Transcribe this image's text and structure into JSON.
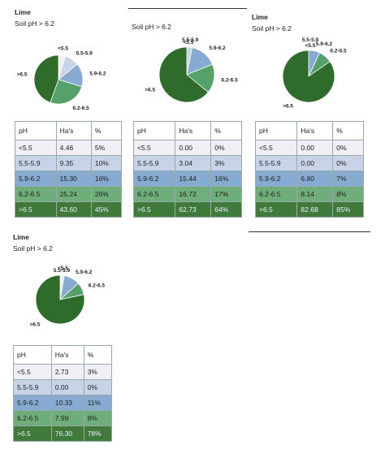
{
  "colors": [
    "#f1eef6",
    "#c9d3e8",
    "#87abd0",
    "#56a16a",
    "#2f6b2a"
  ],
  "chart_data": [
    {
      "type": "pie",
      "title": "Lime",
      "subtitle": "Soil pH > 6.2",
      "table_headers": [
        "pH",
        "Ha's",
        "%"
      ],
      "rows": [
        {
          "label": "<5.5",
          "ha": "4.46",
          "pct": "5%"
        },
        {
          "label": "5.5-5.9",
          "ha": "9.35",
          "pct": "10%"
        },
        {
          "label": "5.9-6.2",
          "ha": "15.30",
          "pct": "16%"
        },
        {
          "label": "6.2-6.5",
          "ha": "25.24",
          "pct": "26%"
        },
        {
          "label": ">6.5",
          "ha": "43.60",
          "pct": "45%"
        }
      ],
      "values": [
        4.46,
        9.35,
        15.3,
        25.24,
        43.6
      ]
    },
    {
      "type": "pie",
      "title": "",
      "subtitle": "Soil pH > 6.2",
      "table_headers": [
        "pH",
        "Ha's",
        "%"
      ],
      "rows": [
        {
          "label": "<5.5",
          "ha": "0.00",
          "pct": "0%"
        },
        {
          "label": "5.5-5.9",
          "ha": "3.04",
          "pct": "3%"
        },
        {
          "label": "5.9-6.2",
          "ha": "15.44",
          "pct": "16%"
        },
        {
          "label": "6.2-6.5",
          "ha": "16.72",
          "pct": "17%"
        },
        {
          "label": ">6.5",
          "ha": "62.73",
          "pct": "64%"
        }
      ],
      "values": [
        0.0,
        3.04,
        15.44,
        16.72,
        62.73
      ]
    },
    {
      "type": "pie",
      "title": "Lime",
      "subtitle": "Soil pH > 6.2",
      "table_headers": [
        "pH",
        "Ha's",
        "%"
      ],
      "rows": [
        {
          "label": "<5.5",
          "ha": "0.00",
          "pct": "0%"
        },
        {
          "label": "5.5-5.9",
          "ha": "0.00",
          "pct": "0%"
        },
        {
          "label": "5.9-6.2",
          "ha": "6.80",
          "pct": "7%"
        },
        {
          "label": "6.2-6.5",
          "ha": "8.14",
          "pct": "8%"
        },
        {
          "label": ">6.5",
          "ha": "82.68",
          "pct": "85%"
        }
      ],
      "values": [
        0.0,
        0.0,
        6.8,
        8.14,
        82.68
      ]
    },
    {
      "type": "pie",
      "title": "Lime",
      "subtitle": "Soil pH > 6.2",
      "table_headers": [
        "pH",
        "Ha's",
        "%"
      ],
      "rows": [
        {
          "label": "<5.5",
          "ha": "2.73",
          "pct": "3%"
        },
        {
          "label": "5.5-5.9",
          "ha": "0.00",
          "pct": "0%"
        },
        {
          "label": "5.9-6.2",
          "ha": "10.33",
          "pct": "11%"
        },
        {
          "label": "6.2-6.5",
          "ha": "7.99",
          "pct": "8%"
        },
        {
          "label": ">6.5",
          "ha": "76.30",
          "pct": "78%"
        }
      ],
      "values": [
        2.73,
        0.0,
        10.33,
        7.99,
        76.3
      ]
    }
  ]
}
